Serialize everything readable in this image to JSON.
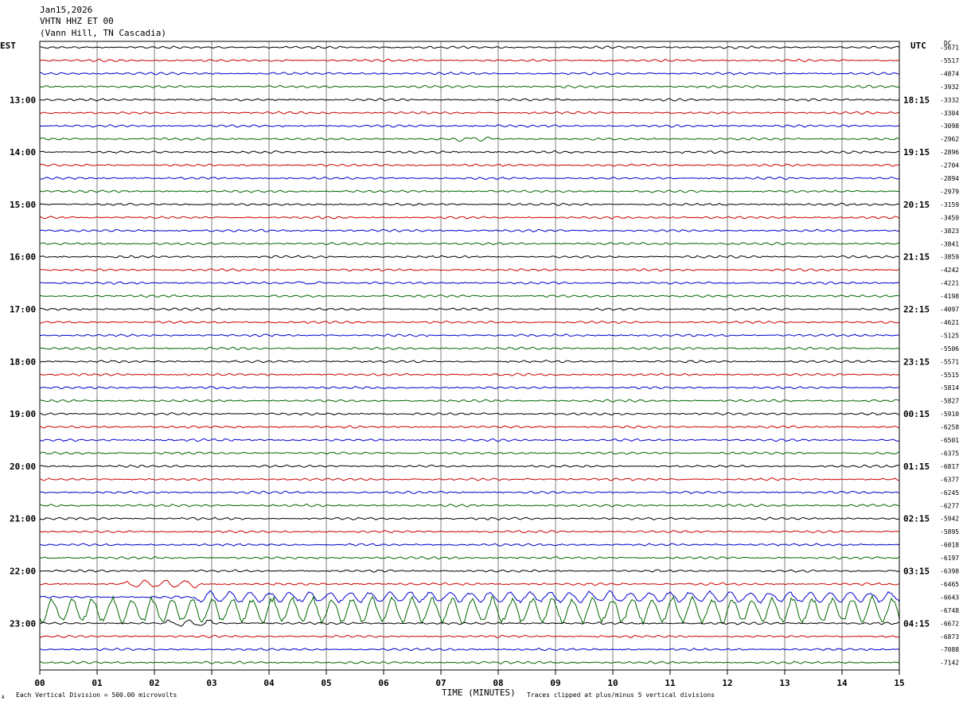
{
  "header": {
    "date": "Jan15,2026",
    "station": "VHTN HHZ ET 00",
    "location": "(Vann Hill, TN Cascadia)"
  },
  "left_axis_label": "EST",
  "right_axis_label": "UTC",
  "dc_label": "DC",
  "footer": {
    "x_axis_title": "TIME (MINUTES)",
    "scale_note": "Each Vertical Division =  500.00 microvolts",
    "clip_note": "Traces clipped at plus/minus 5 vertical divisions",
    "corner_mark": "A"
  },
  "colors": {
    "cycle": [
      "#000000",
      "#cc0000",
      "#0000cc",
      "#006600"
    ],
    "grid": "#7f7f7f",
    "frame": "#000000"
  },
  "chart_data": {
    "type": "line",
    "title": "",
    "x_ticks": [
      "00",
      "01",
      "02",
      "03",
      "04",
      "05",
      "06",
      "07",
      "08",
      "09",
      "10",
      "11",
      "12",
      "13",
      "14",
      "15"
    ],
    "xlim": [
      0,
      15
    ],
    "trace_interval_minutes": 15,
    "est_hour_labels": [
      "13:00",
      "14:00",
      "15:00",
      "16:00",
      "17:00",
      "18:00",
      "19:00",
      "20:00",
      "21:00",
      "22:00",
      "23:00"
    ],
    "utc_labels": [
      "18:15",
      "19:15",
      "20:15",
      "21:15",
      "22:15",
      "23:15",
      "00:15",
      "01:15",
      "02:15",
      "03:15",
      "04:15"
    ],
    "dc_offsets": [
      "-5671",
      "-5517",
      "-4874",
      "-3932",
      "-3332",
      "-3304",
      "-3098",
      "-2962",
      "-2896",
      "-2704",
      "-2894",
      "-2979",
      "-3159",
      "-3459",
      "-3823",
      "-3841",
      "-3859",
      "-4242",
      "-4221",
      "-4198",
      "-4097",
      "-4621",
      "-5125",
      "-5506",
      "-5571",
      "-5515",
      "-5814",
      "-5827",
      "-5910",
      "-6258",
      "-6501",
      "-6375",
      "-6817",
      "-6377",
      "-6245",
      "-6277",
      "-5942",
      "-5895",
      "-6018",
      "-6197",
      "-6398",
      "-6465",
      "-6643",
      "-6748",
      "-6672",
      "-6873",
      "-7088",
      "-7142"
    ],
    "events": [
      {
        "trace": 7,
        "start_min": 7.2,
        "end_min": 7.9,
        "amplitude": 0.35
      },
      {
        "trace": 18,
        "start_min": 4.5,
        "end_min": 4.9,
        "amplitude": 0.25
      },
      {
        "trace": 41,
        "start_min": 1.5,
        "end_min": 2.8,
        "amplitude": 0.7
      },
      {
        "trace": 42,
        "start_min": 2.7,
        "end_min": 15.0,
        "amplitude": 1.0
      },
      {
        "trace": 43,
        "start_min": 0.0,
        "end_min": 15.0,
        "amplitude": 2.5
      },
      {
        "trace": 44,
        "start_min": 2.2,
        "end_min": 3.0,
        "amplitude": 0.6
      }
    ]
  }
}
